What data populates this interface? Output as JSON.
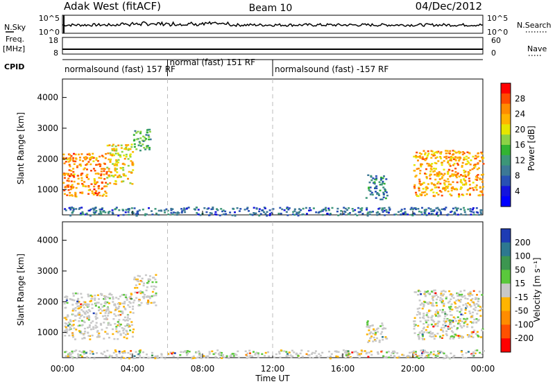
{
  "header": {
    "station": "Adak West (fitACF)",
    "beam": "Beam 10",
    "date": "04/Dec/2012"
  },
  "top_panel": {
    "left_label": "N.Sky",
    "left_ticks": [
      "10^5",
      "10^0"
    ],
    "right_label": "N.Search",
    "right_ticks": [
      "10^5",
      "10^0"
    ]
  },
  "freq_panel": {
    "left_label_1": "Freq.",
    "left_label_2": "[MHz]",
    "left_ticks": [
      "18",
      "8"
    ],
    "right_label": "Nave",
    "right_ticks": [
      "60",
      "0"
    ]
  },
  "cpid": {
    "label": "CPID",
    "segments": [
      {
        "text": "normalsound (fast) 157 RF",
        "start_h": 0,
        "end_h": 6
      },
      {
        "text": "normal (fast) 151 RF",
        "start_h": 6,
        "end_h": 12
      },
      {
        "text": "normalsound (fast) -157 RF",
        "start_h": 12,
        "end_h": 24
      }
    ]
  },
  "x_ticks": [
    "00:00",
    "04:00",
    "08:00",
    "12:00",
    "16:00",
    "20:00",
    "00:00"
  ],
  "x_label": "Time UT",
  "power_panel": {
    "ylabel": "Slant Range [km]",
    "yticks": [
      "4000",
      "3000",
      "2000",
      "1000"
    ],
    "colorbar_label": "Power [dB]",
    "colorbar_ticks": [
      "28",
      "24",
      "20",
      "16",
      "12",
      "8",
      "4"
    ],
    "colors": [
      "#ff0000",
      "#ff4a00",
      "#ff8c00",
      "#ffb400",
      "#e6e600",
      "#8cd246",
      "#32b432",
      "#3c9678",
      "#3c7896",
      "#2850b4",
      "#1414dc",
      "#0000ff"
    ]
  },
  "velocity_panel": {
    "ylabel": "Slant Range [km]",
    "yticks": [
      "4000",
      "3000",
      "2000",
      "1000"
    ],
    "colorbar_label": "Velocity [m s⁻¹]",
    "colorbar_ticks": [
      "200",
      "100",
      "50",
      "15",
      "-15",
      "-50",
      "-100",
      "-200"
    ],
    "colors": [
      "#1e3cb4",
      "#2d7890",
      "#3c9650",
      "#5ac83c",
      "#c8c8c8",
      "#ffb400",
      "#ff8c00",
      "#ff5000",
      "#ff0000"
    ]
  },
  "chart_data": [
    {
      "type": "heatmap",
      "title": "Power",
      "x_range_h": [
        0,
        24
      ],
      "y_range_km": [
        180,
        4600
      ],
      "colorbar_range_db": [
        0,
        32
      ],
      "regions": [
        {
          "t0": 0.0,
          "t1": 2.5,
          "r0": 800,
          "r1": 2200,
          "typical_db": 26
        },
        {
          "t0": 2.5,
          "t1": 4.0,
          "r0": 1200,
          "r1": 2500,
          "typical_db": 22
        },
        {
          "t0": 4.0,
          "t1": 5.0,
          "r0": 2300,
          "r1": 3000,
          "typical_db": 14
        },
        {
          "t0": 17.3,
          "t1": 18.5,
          "r0": 700,
          "r1": 1500,
          "typical_db": 10
        },
        {
          "t0": 20.0,
          "t1": 24.0,
          "r0": 800,
          "r1": 2300,
          "typical_db": 24
        },
        {
          "t0": 0.0,
          "t1": 24.0,
          "r0": 180,
          "r1": 450,
          "typical_db": 8
        }
      ]
    },
    {
      "type": "heatmap",
      "title": "Velocity",
      "x_range_h": [
        0,
        24
      ],
      "y_range_km": [
        180,
        4600
      ],
      "colorbar_range_ms": [
        -200,
        200
      ],
      "regions": [
        {
          "t0": 0.0,
          "t1": 4.0,
          "r0": 800,
          "r1": 2300,
          "typical_ms": 0
        },
        {
          "t0": 4.0,
          "t1": 5.3,
          "r0": 1900,
          "r1": 2900,
          "typical_ms": 0
        },
        {
          "t0": 17.3,
          "t1": 18.5,
          "r0": 700,
          "r1": 1400,
          "typical_ms": 0
        },
        {
          "t0": 20.0,
          "t1": 24.0,
          "r0": 800,
          "r1": 2400,
          "typical_ms": 0
        },
        {
          "t0": 0.0,
          "t1": 24.0,
          "r0": 180,
          "r1": 450,
          "typical_ms": -60
        }
      ]
    }
  ]
}
